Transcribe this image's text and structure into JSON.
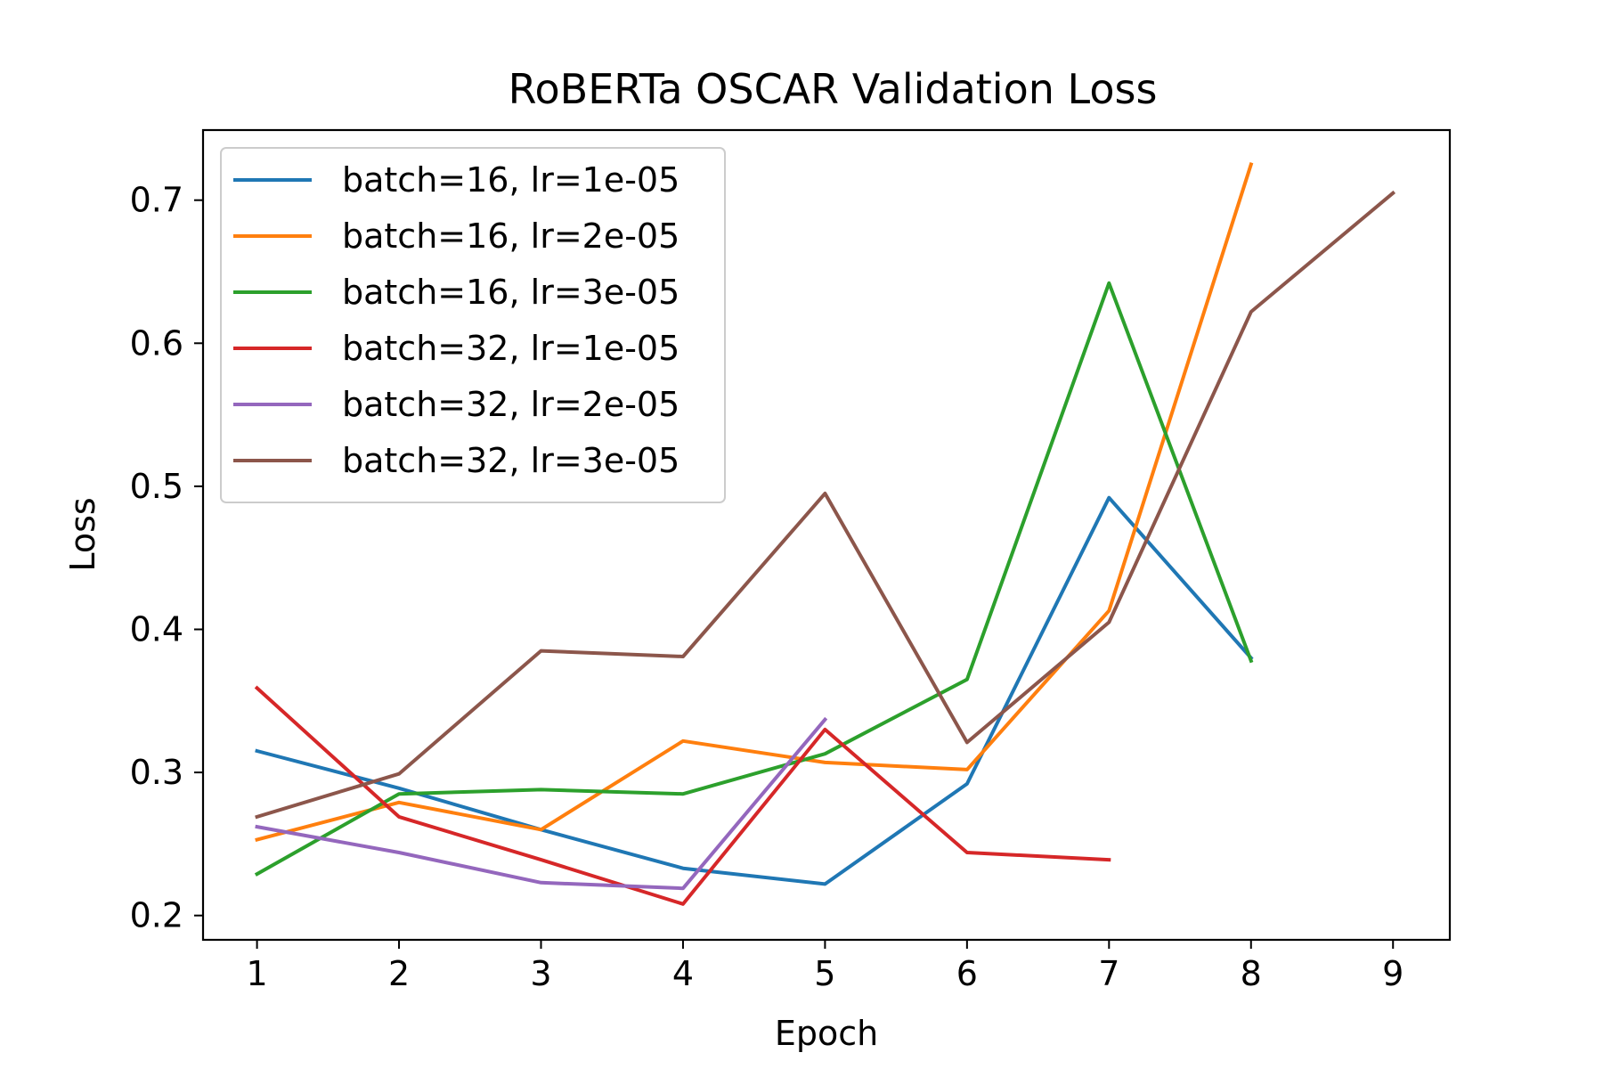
{
  "chart_data": {
    "type": "line",
    "title": "RoBERTa OSCAR Validation Loss",
    "xlabel": "Epoch",
    "ylabel": "Loss",
    "xlim": [
      0.62,
      9.4
    ],
    "ylim": [
      0.183,
      0.749
    ],
    "xticks": [
      1,
      2,
      3,
      4,
      5,
      6,
      7,
      8,
      9
    ],
    "xtick_labels": [
      "1",
      "2",
      "3",
      "4",
      "5",
      "6",
      "7",
      "8",
      "9"
    ],
    "yticks": [
      0.2,
      0.3,
      0.4,
      0.5,
      0.6,
      0.7
    ],
    "ytick_labels": [
      "0.2",
      "0.3",
      "0.4",
      "0.5",
      "0.6",
      "0.7"
    ],
    "grid": false,
    "legend_position": "top-left",
    "series": [
      {
        "name": "batch=16, lr=1e-05",
        "color": "#1f77b4",
        "x": [
          1,
          2,
          3,
          4,
          5,
          6,
          7,
          8
        ],
        "values": [
          0.315,
          0.289,
          0.26,
          0.233,
          0.222,
          0.292,
          0.492,
          0.38
        ]
      },
      {
        "name": "batch=16, lr=2e-05",
        "color": "#ff7f0e",
        "x": [
          1,
          2,
          3,
          4,
          5,
          6,
          7,
          8
        ],
        "values": [
          0.253,
          0.279,
          0.26,
          0.322,
          0.307,
          0.302,
          0.413,
          0.725
        ]
      },
      {
        "name": "batch=16, lr=3e-05",
        "color": "#2ca02c",
        "x": [
          1,
          2,
          3,
          4,
          5,
          6,
          7,
          8
        ],
        "values": [
          0.229,
          0.285,
          0.288,
          0.285,
          0.313,
          0.365,
          0.642,
          0.378
        ]
      },
      {
        "name": "batch=32, lr=1e-05",
        "color": "#d62728",
        "x": [
          1,
          2,
          3,
          4,
          5,
          6,
          7
        ],
        "values": [
          0.359,
          0.269,
          0.239,
          0.208,
          0.33,
          0.244,
          0.239
        ]
      },
      {
        "name": "batch=32, lr=2e-05",
        "color": "#9467bd",
        "x": [
          1,
          2,
          3,
          4,
          5
        ],
        "values": [
          0.262,
          0.244,
          0.223,
          0.219,
          0.337
        ]
      },
      {
        "name": "batch=32, lr=3e-05",
        "color": "#8c564b",
        "x": [
          1,
          2,
          3,
          4,
          5,
          6,
          7,
          8,
          9
        ],
        "values": [
          0.269,
          0.299,
          0.385,
          0.381,
          0.495,
          0.321,
          0.405,
          0.622,
          0.705
        ]
      }
    ]
  }
}
